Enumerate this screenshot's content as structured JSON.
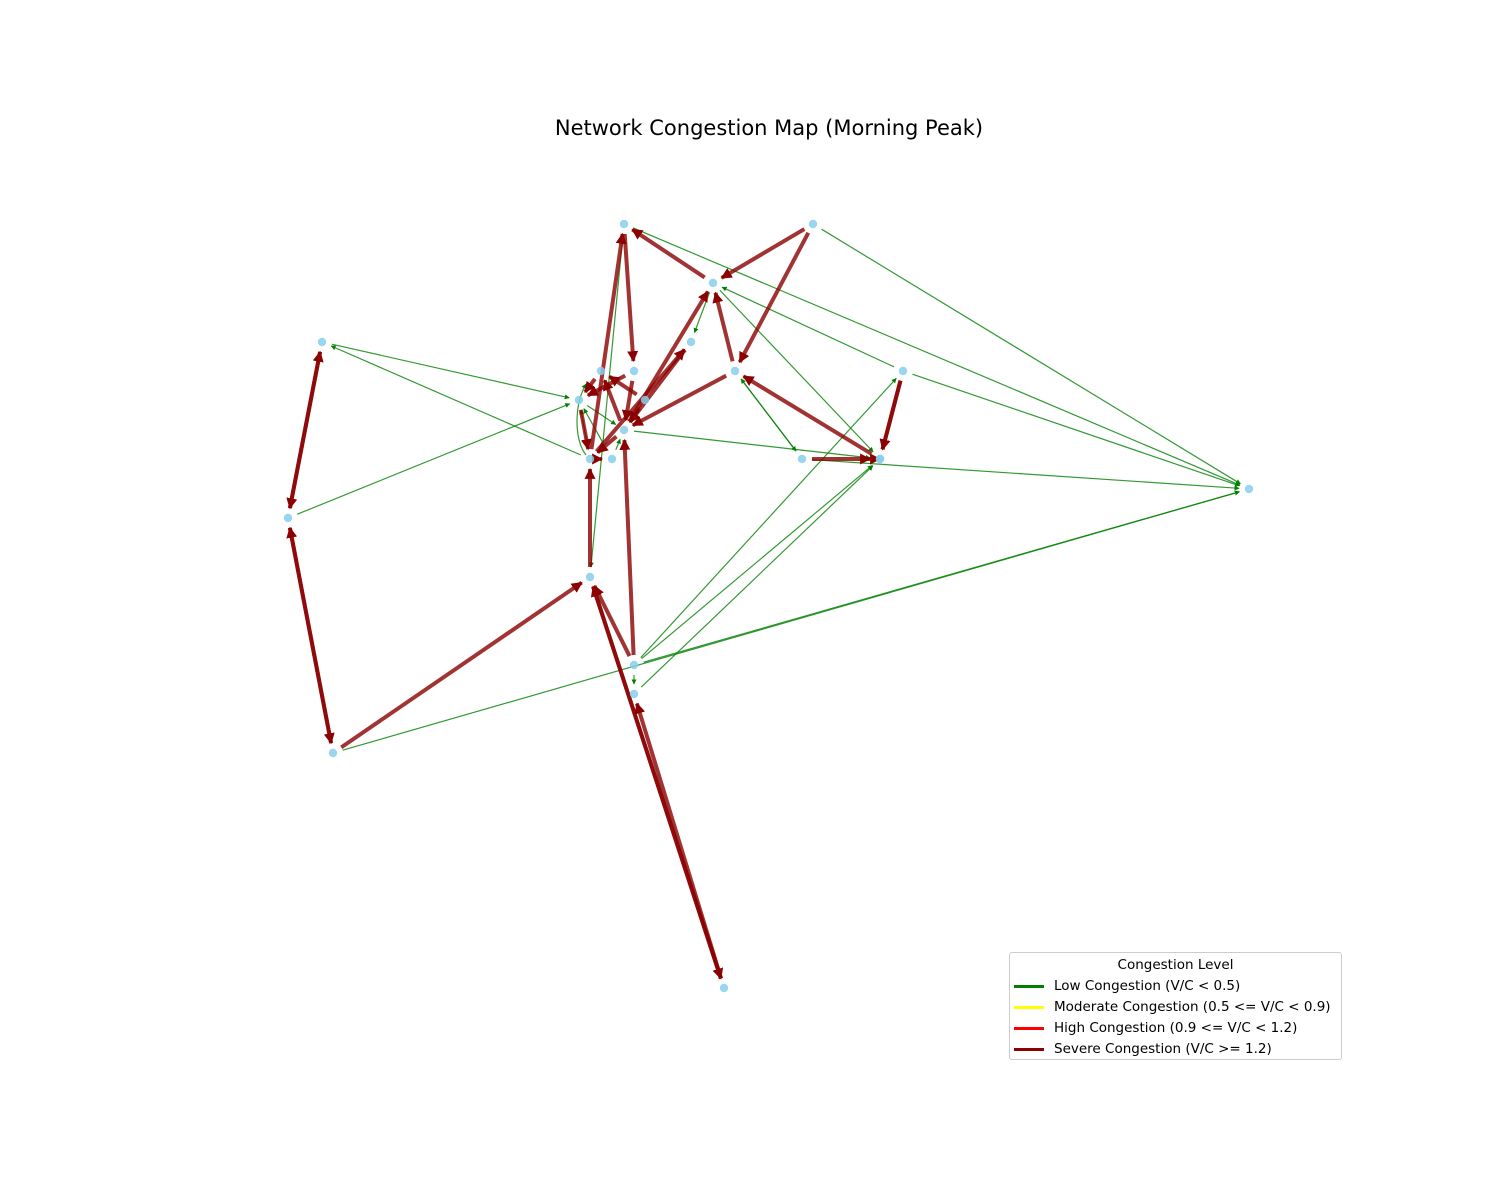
{
  "figure": {
    "title": "Network Congestion Map (Morning Peak)"
  },
  "legend": {
    "title": "Congestion Level",
    "items": [
      {
        "label": "Low Congestion (V/C < 0.5)",
        "color": "#008000"
      },
      {
        "label": "Moderate Congestion (0.5 <= V/C < 0.9)",
        "color": "#ffff00"
      },
      {
        "label": "High Congestion (0.9 <= V/C < 1.2)",
        "color": "#ff0000"
      },
      {
        "label": "Severe Congestion (V/C >= 1.2)",
        "color": "#8b0000"
      }
    ]
  },
  "colors": {
    "node": "#87ceeb",
    "low": "#008000",
    "severe": "#8b0000"
  },
  "network": {
    "nodes": [
      {
        "id": "N1"
      },
      {
        "id": "N2"
      },
      {
        "id": "N3"
      },
      {
        "id": "N4"
      },
      {
        "id": "N5"
      },
      {
        "id": "N6"
      },
      {
        "id": "N7"
      },
      {
        "id": "N8"
      },
      {
        "id": "N9"
      },
      {
        "id": "N10"
      },
      {
        "id": "N11"
      },
      {
        "id": "N12"
      },
      {
        "id": "N13"
      },
      {
        "id": "N14"
      },
      {
        "id": "N15"
      },
      {
        "id": "N16"
      },
      {
        "id": "N17"
      },
      {
        "id": "N18"
      },
      {
        "id": "N19"
      },
      {
        "id": "N20"
      },
      {
        "id": "N21"
      },
      {
        "id": "N22"
      },
      {
        "id": "N23"
      },
      {
        "id": "N24"
      }
    ],
    "edges": [
      {
        "from": "N2",
        "to": "N3",
        "level": "severe"
      },
      {
        "from": "N2",
        "to": "N6",
        "level": "severe"
      },
      {
        "from": "N3",
        "to": "N1",
        "level": "severe"
      },
      {
        "from": "N1",
        "to": "N8",
        "level": "severe"
      },
      {
        "from": "N13",
        "to": "N1",
        "level": "severe"
      },
      {
        "from": "N14",
        "to": "N3",
        "level": "severe"
      },
      {
        "from": "N6",
        "to": "N3",
        "level": "severe"
      },
      {
        "from": "N6",
        "to": "N14",
        "level": "severe"
      },
      {
        "from": "N17",
        "to": "N6",
        "level": "severe"
      },
      {
        "from": "N7",
        "to": "N17",
        "level": "severe"
      },
      {
        "from": "N7",
        "to": "N18",
        "level": "severe"
      },
      {
        "from": "N16",
        "to": "N17",
        "level": "severe"
      },
      {
        "from": "N18",
        "to": "N17",
        "level": "severe"
      },
      {
        "from": "N4",
        "to": "N5",
        "level": "severe"
      },
      {
        "from": "N5",
        "to": "N4",
        "level": "severe"
      },
      {
        "from": "N5",
        "to": "N21",
        "level": "severe"
      },
      {
        "from": "N21",
        "to": "N5",
        "level": "severe"
      },
      {
        "from": "N21",
        "to": "N20",
        "level": "severe"
      },
      {
        "from": "N20",
        "to": "N13",
        "level": "severe"
      },
      {
        "from": "N22",
        "to": "N20",
        "level": "severe"
      },
      {
        "from": "N22",
        "to": "N14",
        "level": "severe"
      },
      {
        "from": "N24",
        "to": "N20",
        "level": "severe"
      },
      {
        "from": "N20",
        "to": "N24",
        "level": "severe"
      },
      {
        "from": "N24",
        "to": "N23",
        "level": "severe"
      },
      {
        "from": "N13",
        "to": "N10",
        "level": "severe"
      },
      {
        "from": "N10",
        "to": "N14",
        "level": "severe"
      },
      {
        "from": "N12",
        "to": "N14",
        "level": "severe"
      },
      {
        "from": "N8",
        "to": "N14",
        "level": "severe"
      },
      {
        "from": "N11",
        "to": "N9",
        "level": "severe"
      },
      {
        "from": "N9",
        "to": "N13",
        "level": "severe"
      },
      {
        "from": "N14",
        "to": "N11",
        "level": "severe"
      },
      {
        "from": "N14",
        "to": "N13",
        "level": "severe"
      },
      {
        "from": "N12",
        "to": "N11",
        "level": "severe"
      },
      {
        "from": "N8",
        "to": "N9",
        "level": "severe"
      },
      {
        "from": "N13",
        "to": "N15",
        "level": "severe"
      },
      {
        "from": "N1",
        "to": "N19",
        "level": "low"
      },
      {
        "from": "N2",
        "to": "N19",
        "level": "low"
      },
      {
        "from": "N7",
        "to": "N19",
        "level": "low"
      },
      {
        "from": "N16",
        "to": "N19",
        "level": "low"
      },
      {
        "from": "N14",
        "to": "N17",
        "level": "low"
      },
      {
        "from": "N6",
        "to": "N16",
        "level": "low"
      },
      {
        "from": "N16",
        "to": "N6",
        "level": "low"
      },
      {
        "from": "N7",
        "to": "N3",
        "level": "low"
      },
      {
        "from": "N3",
        "to": "N17",
        "level": "low"
      },
      {
        "from": "N3",
        "to": "N10",
        "level": "low"
      },
      {
        "from": "N4",
        "to": "N9",
        "level": "low"
      },
      {
        "from": "N5",
        "to": "N9",
        "level": "low"
      },
      {
        "from": "N13",
        "to": "N4",
        "level": "low"
      },
      {
        "from": "N21",
        "to": "N19",
        "level": "low"
      },
      {
        "from": "N22",
        "to": "N7",
        "level": "low"
      },
      {
        "from": "N22",
        "to": "N17",
        "level": "low"
      },
      {
        "from": "N22",
        "to": "N19",
        "level": "low"
      },
      {
        "from": "N22",
        "to": "N23",
        "level": "low"
      },
      {
        "from": "N23",
        "to": "N17",
        "level": "low"
      },
      {
        "from": "N1",
        "to": "N20",
        "level": "low"
      },
      {
        "from": "N15",
        "to": "N9",
        "level": "low"
      },
      {
        "from": "N13",
        "to": "N9",
        "level": "low"
      },
      {
        "from": "N9",
        "to": "N14",
        "level": "low"
      },
      {
        "from": "N15",
        "to": "N14",
        "level": "low"
      },
      {
        "from": "N12",
        "to": "N14",
        "level": "low"
      },
      {
        "from": "N14",
        "to": "N12",
        "level": "low"
      }
    ]
  }
}
